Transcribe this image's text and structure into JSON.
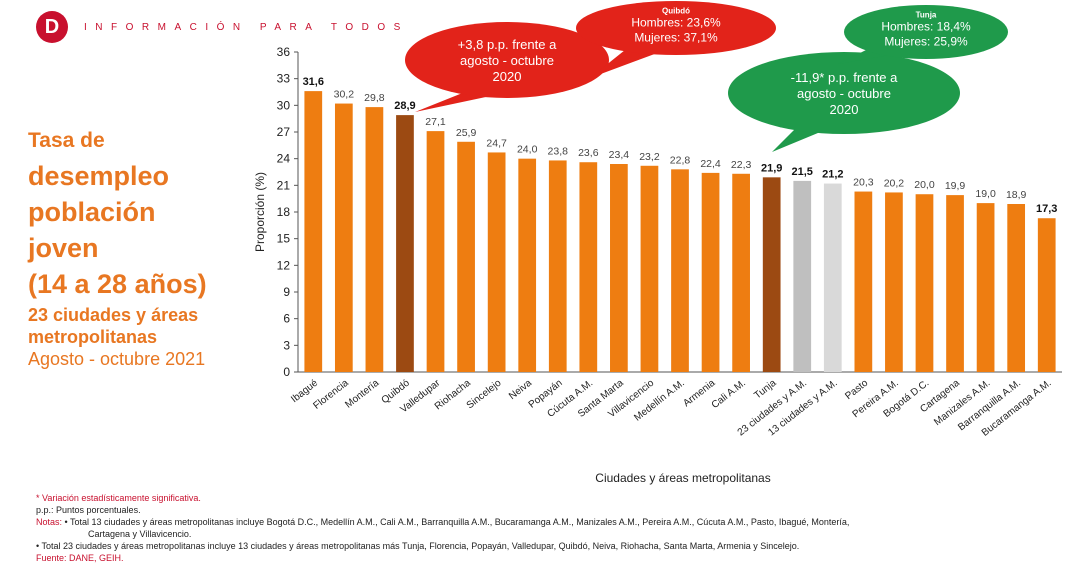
{
  "header": {
    "logo_letter": "D",
    "tagline": "INFORMACIÓN PARA TODOS"
  },
  "title": {
    "line1": "Tasa de",
    "line2": "desempleo",
    "line3": "población",
    "line4": "joven",
    "line5": "(14 a 28 años)",
    "line6": "23 ciudades y áreas",
    "line7": "metropolitanas",
    "line8": "Agosto - octubre 2021"
  },
  "chart_data": {
    "type": "bar",
    "xlabel": "Ciudades y áreas metropolitanas",
    "ylabel": "Proporción (%)",
    "ylim": [
      0,
      36
    ],
    "yticks": [
      0,
      3,
      6,
      9,
      12,
      15,
      18,
      21,
      24,
      27,
      30,
      33,
      36
    ],
    "categories": [
      "Ibagué",
      "Florencia",
      "Montería",
      "Quibdó",
      "Valledupar",
      "Riohacha",
      "Sincelejo",
      "Neiva",
      "Popayán",
      "Cúcuta A.M.",
      "Santa Marta",
      "Villavicencio",
      "Medellín A.M.",
      "Armenia",
      "Cali A.M.",
      "Tunja",
      "23 ciudades y A.M.",
      "13 ciudades y A.M.",
      "Pasto",
      "Pereira A.M.",
      "Bogotá D.C.",
      "Cartagena",
      "Manizales A.M.",
      "Barranquilla A.M.",
      "Bucaramanga A.M."
    ],
    "values": [
      31.6,
      30.2,
      29.8,
      28.9,
      27.1,
      25.9,
      24.7,
      24.0,
      23.8,
      23.6,
      23.4,
      23.2,
      22.8,
      22.4,
      22.3,
      21.9,
      21.5,
      21.2,
      20.3,
      20.2,
      20.0,
      19.9,
      19.0,
      18.9,
      17.3
    ],
    "value_labels": [
      "31,6",
      "30,2",
      "29,8",
      "28,9",
      "27,1",
      "25,9",
      "24,7",
      "24,0",
      "23,8",
      "23,6",
      "23,4",
      "23,2",
      "22,8",
      "22,4",
      "22,3",
      "21,9",
      "21,5",
      "21,2",
      "20,3",
      "20,2",
      "20,0",
      "19,9",
      "19,0",
      "18,9",
      "17,3"
    ],
    "bold_labels": [
      0,
      3,
      15,
      16,
      17,
      24
    ],
    "bar_colors": [
      "#ee7d11",
      "#ee7d11",
      "#ee7d11",
      "#9c4a12",
      "#ee7d11",
      "#ee7d11",
      "#ee7d11",
      "#ee7d11",
      "#ee7d11",
      "#ee7d11",
      "#ee7d11",
      "#ee7d11",
      "#ee7d11",
      "#ee7d11",
      "#ee7d11",
      "#9c4a12",
      "#bfbfbf",
      "#d9d9d9",
      "#ee7d11",
      "#ee7d11",
      "#ee7d11",
      "#ee7d11",
      "#ee7d11",
      "#ee7d11",
      "#ee7d11"
    ],
    "annotations": [
      {
        "color": "#e2231a",
        "lines": [
          "+3,8 p.p. frente a",
          "agosto - octubre",
          "2020"
        ]
      },
      {
        "color": "#e2231a",
        "heading": "Quibdó",
        "lines": [
          "Hombres: 23,6%",
          "Mujeres: 37,1%"
        ]
      },
      {
        "color": "#1f9a4b",
        "lines": [
          "-11,9* p.p. frente a",
          "agosto - octubre",
          "2020"
        ]
      },
      {
        "color": "#1f9a4b",
        "heading": "Tunja",
        "lines": [
          "Hombres: 18,4%",
          "Mujeres: 25,9%"
        ]
      }
    ]
  },
  "notes": {
    "significance": "* Variación estadísticamente significativa.",
    "pp": "p.p.: Puntos porcentuales.",
    "notas_label": "Notas:",
    "note1": "• Total 13 ciudades y áreas metropolitanas incluye Bogotá D.C., Medellín A.M., Cali A.M., Barranquilla A.M., Bucaramanga A.M., Manizales A.M., Pereira A.M., Cúcuta A.M., Pasto, Ibagué, Montería,",
    "note1b": "Cartagena y Villavicencio.",
    "note2": "• Total 23 ciudades y áreas metropolitanas incluye 13 ciudades y áreas metropolitanas más Tunja, Florencia, Popayán, Valledupar, Quibdó, Neiva, Riohacha, Santa Marta, Armenia y Sincelejo.",
    "source": "Fuente: DANE, GEIH."
  }
}
